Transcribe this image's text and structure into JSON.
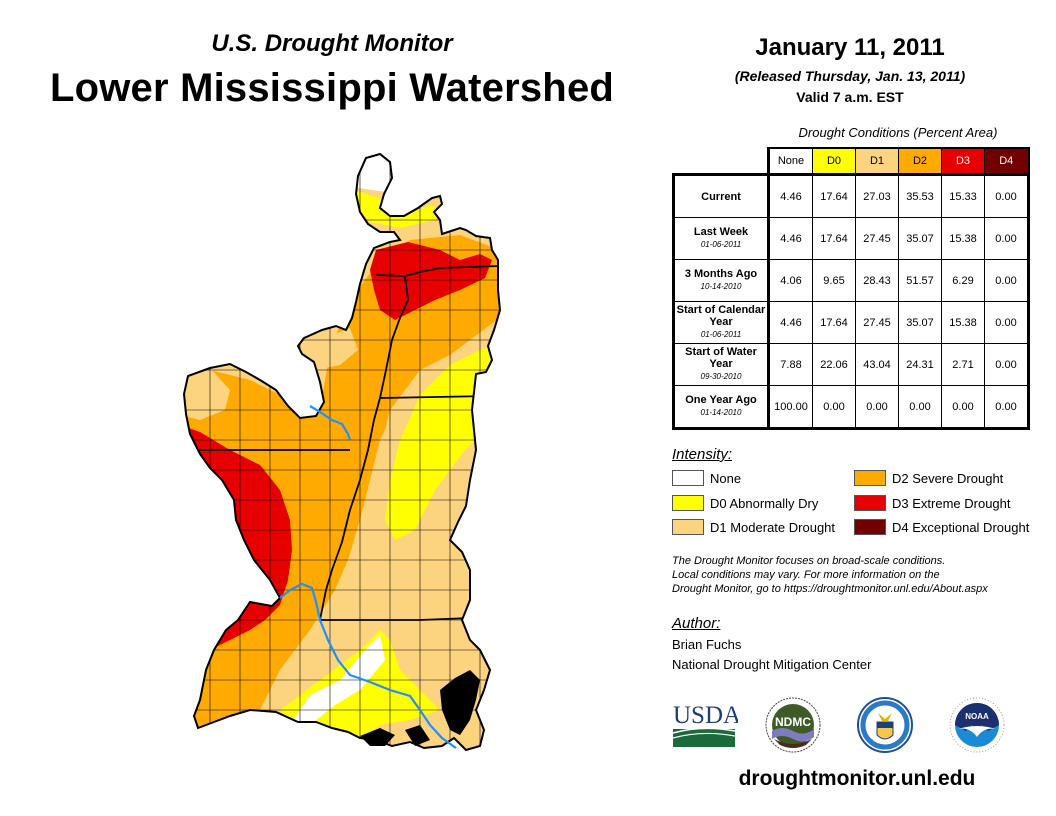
{
  "header": {
    "subtitle": "U.S. Drought Monitor",
    "title": "Lower Mississippi Watershed",
    "date": "January 11, 2011",
    "released": "(Released Thursday, Jan. 13, 2011)",
    "valid": "Valid 7 a.m. EST"
  },
  "table": {
    "caption": "Drought Conditions (Percent Area)",
    "columns": [
      "None",
      "D0",
      "D1",
      "D2",
      "D3",
      "D4"
    ],
    "rows": [
      {
        "label": "Current",
        "date": "",
        "values": [
          "4.46",
          "17.64",
          "27.03",
          "35.53",
          "15.33",
          "0.00"
        ]
      },
      {
        "label": "Last Week",
        "date": "01-06-2011",
        "values": [
          "4.46",
          "17.64",
          "27.45",
          "35.07",
          "15.38",
          "0.00"
        ]
      },
      {
        "label": "3 Months Ago",
        "date": "10-14-2010",
        "values": [
          "4.06",
          "9.65",
          "28.43",
          "51.57",
          "6.29",
          "0.00"
        ]
      },
      {
        "label": "Start of Calendar Year",
        "date": "01-06-2011",
        "values": [
          "4.46",
          "17.64",
          "27.45",
          "35.07",
          "15.38",
          "0.00"
        ]
      },
      {
        "label": "Start of Water Year",
        "date": "09-30-2010",
        "values": [
          "7.88",
          "22.06",
          "43.04",
          "24.31",
          "2.71",
          "0.00"
        ]
      },
      {
        "label": "One Year Ago",
        "date": "01-14-2010",
        "values": [
          "100.00",
          "0.00",
          "0.00",
          "0.00",
          "0.00",
          "0.00"
        ]
      }
    ]
  },
  "legend": {
    "title": "Intensity:",
    "items": [
      {
        "label": "None",
        "color": "#ffffff"
      },
      {
        "label": "D0 Abnormally Dry",
        "color": "#ffff00"
      },
      {
        "label": "D1 Moderate Drought",
        "color": "#fcd37f"
      },
      {
        "label": "D2 Severe Drought",
        "color": "#ffaa00"
      },
      {
        "label": "D3 Extreme Drought",
        "color": "#e60000"
      },
      {
        "label": "D4 Exceptional Drought",
        "color": "#730000"
      }
    ]
  },
  "note": {
    "line1": "The Drought Monitor focuses on broad-scale conditions.",
    "line2": "Local conditions may vary. For more information on the",
    "line3": "Drought Monitor, go to https://droughtmonitor.unl.edu/About.aspx"
  },
  "author": {
    "title": "Author:",
    "name": "Brian Fuchs",
    "org": "National Drought Mitigation Center"
  },
  "logos": {
    "usda": "USDA",
    "ndmc": "NDMC",
    "noaa": "NOAA"
  },
  "footer": {
    "url": "droughtmonitor.unl.edu"
  },
  "colors": {
    "river": "#1e90ff",
    "border": "#000000"
  }
}
